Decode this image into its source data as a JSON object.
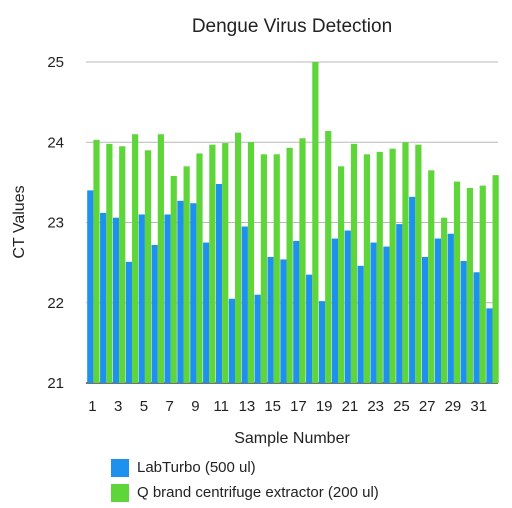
{
  "chart_data": {
    "type": "bar",
    "title": "Dengue Virus Detection",
    "xlabel": "Sample Number",
    "ylabel": "CT Values",
    "ylim": [
      21,
      25
    ],
    "yticks": [
      "21",
      "22",
      "23",
      "24",
      "25"
    ],
    "grid": true,
    "legend_position": "bottom",
    "categories": [
      "1",
      "2",
      "3",
      "4",
      "5",
      "6",
      "7",
      "8",
      "9",
      "10",
      "11",
      "12",
      "13",
      "14",
      "15",
      "16",
      "17",
      "18",
      "19",
      "20",
      "21",
      "22",
      "23",
      "24",
      "25",
      "26",
      "27",
      "28",
      "29",
      "30",
      "31",
      "32"
    ],
    "xtick_labels": [
      "1",
      "",
      "3",
      "",
      "5",
      "",
      "7",
      "",
      "9",
      "",
      "11",
      "",
      "13",
      "",
      "15",
      "",
      "17",
      "",
      "19",
      "",
      "21",
      "",
      "23",
      "",
      "25",
      "",
      "27",
      "",
      "29",
      "",
      "31",
      ""
    ],
    "series": [
      {
        "name": "LabTurbo (500 ul)",
        "color": "#1e90ee",
        "values": [
          23.4,
          23.12,
          23.06,
          22.51,
          23.1,
          22.72,
          23.1,
          23.27,
          23.24,
          22.75,
          23.48,
          22.05,
          22.95,
          22.1,
          22.57,
          22.54,
          22.77,
          22.35,
          22.02,
          22.8,
          22.9,
          22.46,
          22.75,
          22.7,
          22.98,
          23.32,
          22.57,
          22.8,
          22.86,
          22.52,
          22.38,
          21.93
        ]
      },
      {
        "name": "Q brand centrifuge extractor (200 ul)",
        "color": "#5ed63a",
        "values": [
          24.03,
          23.98,
          23.95,
          24.1,
          23.9,
          24.1,
          23.58,
          23.7,
          23.86,
          23.97,
          23.99,
          24.12,
          24.0,
          23.85,
          23.85,
          23.93,
          24.05,
          25.0,
          24.14,
          23.7,
          23.98,
          23.85,
          23.88,
          23.92,
          24.0,
          23.97,
          23.65,
          23.06,
          23.51,
          23.43,
          23.46,
          23.59
        ]
      }
    ]
  }
}
